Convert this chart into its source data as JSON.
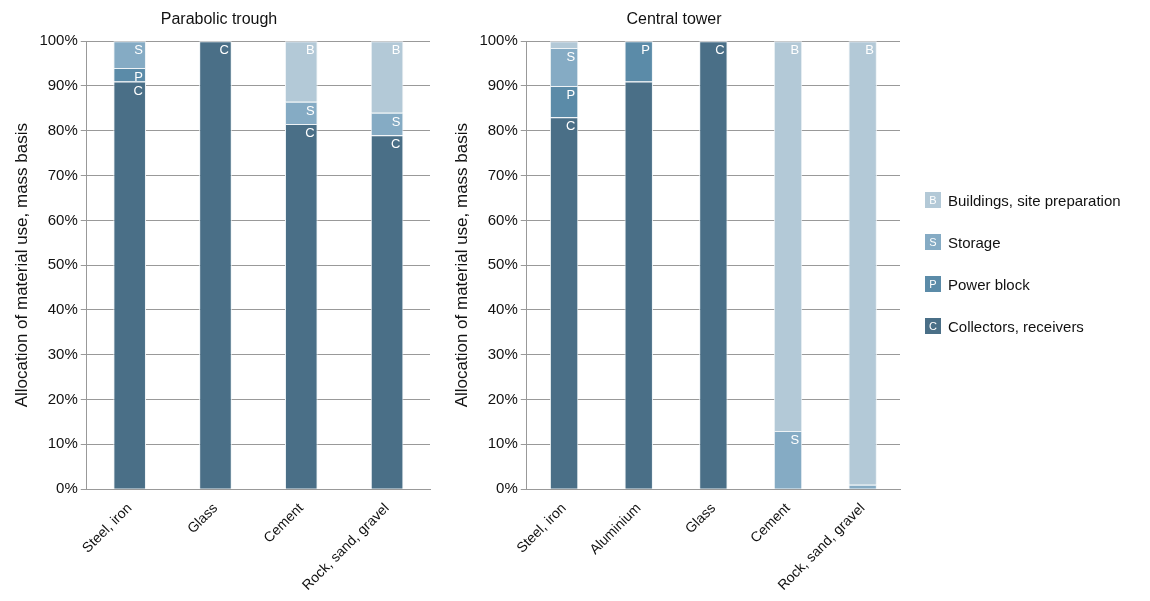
{
  "chart_data": [
    {
      "type": "bar",
      "title": "Parabolic trough",
      "ylabel": "Allocation of material use, mass basis",
      "categories": [
        "Steel, iron",
        "Glass",
        "Cement",
        "Rock, sand, gravel"
      ],
      "stacked": true,
      "grid": "y",
      "legend": "right",
      "ylim": [
        0,
        100
      ],
      "yticks": [
        {
          "value": 0,
          "label": "0%"
        },
        {
          "value": 10,
          "label": "10%"
        },
        {
          "value": 20,
          "label": "20%"
        },
        {
          "value": 30,
          "label": "30%"
        },
        {
          "value": 40,
          "label": "40%"
        },
        {
          "value": 50,
          "label": "50%"
        },
        {
          "value": 60,
          "label": "60%"
        },
        {
          "value": 70,
          "label": "70%"
        },
        {
          "value": 80,
          "label": "80%"
        },
        {
          "value": 90,
          "label": "90%"
        },
        {
          "value": 100,
          "label": "100%"
        }
      ],
      "series": [
        {
          "name": "Collectors, receivers",
          "color": "#4a6f87",
          "values": [
            91,
            100,
            81.5,
            79
          ],
          "value_labels": [
            "C",
            "C",
            "C",
            "C"
          ]
        },
        {
          "name": "Power block",
          "color": "#5b8ba8",
          "values": [
            3,
            null,
            null,
            null
          ],
          "value_labels": [
            "P",
            null,
            null,
            null
          ]
        },
        {
          "name": "Storage",
          "color": "#85abc4",
          "values": [
            6,
            null,
            5,
            5
          ],
          "value_labels": [
            "S",
            null,
            "S",
            "S"
          ]
        },
        {
          "name": "Buildings, site preparation",
          "color": "#b3c9d7",
          "values": [
            null,
            null,
            13.5,
            16
          ],
          "value_labels": [
            null,
            null,
            "B",
            "B"
          ]
        }
      ]
    },
    {
      "type": "bar",
      "title": "Central tower",
      "ylabel": "Allocation of material use, mass basis",
      "categories": [
        "Steel, iron",
        "Aluminium",
        "Glass",
        "Cement",
        "Rock, sand, gravel"
      ],
      "stacked": true,
      "grid": "y",
      "legend": "right",
      "ylim": [
        0,
        100
      ],
      "yticks": [
        {
          "value": 0,
          "label": "0%"
        },
        {
          "value": 10,
          "label": "10%"
        },
        {
          "value": 20,
          "label": "20%"
        },
        {
          "value": 30,
          "label": "30%"
        },
        {
          "value": 40,
          "label": "40%"
        },
        {
          "value": 50,
          "label": "50%"
        },
        {
          "value": 60,
          "label": "60%"
        },
        {
          "value": 70,
          "label": "70%"
        },
        {
          "value": 80,
          "label": "80%"
        },
        {
          "value": 90,
          "label": "90%"
        },
        {
          "value": 100,
          "label": "100%"
        }
      ],
      "series": [
        {
          "name": "Collectors, receivers",
          "color": "#4a6f87",
          "values": [
            83,
            91,
            100,
            null,
            null
          ],
          "value_labels": [
            "C",
            null,
            "C",
            null,
            null
          ]
        },
        {
          "name": "Power block",
          "color": "#5b8ba8",
          "values": [
            7,
            9,
            null,
            null,
            null
          ],
          "value_labels": [
            "P",
            "P",
            null,
            null,
            null
          ]
        },
        {
          "name": "Storage",
          "color": "#85abc4",
          "values": [
            8.5,
            null,
            null,
            13,
            1
          ],
          "value_labels": [
            "S",
            null,
            null,
            "S",
            null
          ]
        },
        {
          "name": "Buildings, site preparation",
          "color": "#b3c9d7",
          "values": [
            1.5,
            null,
            null,
            87,
            99
          ],
          "value_labels": [
            null,
            null,
            null,
            "B",
            "B"
          ]
        }
      ]
    }
  ]
}
